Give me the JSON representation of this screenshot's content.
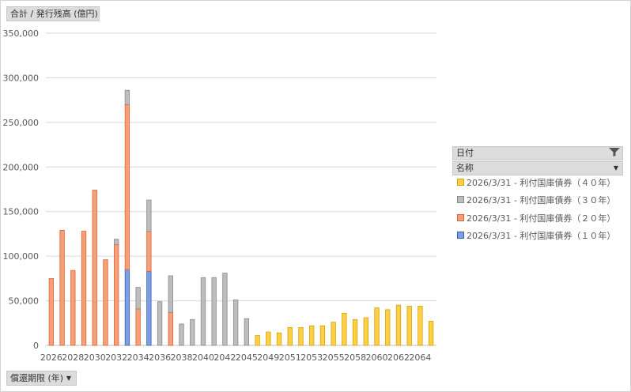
{
  "value_field": "合計 / 発行残高 (億円)",
  "axis_field": "償還期限 (年)",
  "legend": {
    "header_date": "日付",
    "header_name": "名称",
    "items": [
      {
        "label": "2026/3/31 - 利付国庫債券（４０年）",
        "color": "#ffd047",
        "border": "#d4a400"
      },
      {
        "label": "2026/3/31 - 利付国庫債券（３０年）",
        "color": "#bdbdbd",
        "border": "#8a8a8a"
      },
      {
        "label": "2026/3/31 - 利付国庫債券（２０年）",
        "color": "#f4a07a",
        "border": "#e0622e"
      },
      {
        "label": "2026/3/31 - 利付国庫債券（１０年）",
        "color": "#7d9ee0",
        "border": "#3b5fb5"
      }
    ]
  },
  "chart_data": {
    "type": "bar",
    "stacked": true,
    "ylim": [
      0,
      350000
    ],
    "yticks": [
      "0",
      "50,000",
      "100,000",
      "150,000",
      "200,000",
      "250,000",
      "300,000",
      "350,000"
    ],
    "grid": true,
    "categories": [
      "2026",
      "2027",
      "2028",
      "2029",
      "2030",
      "2031",
      "2032",
      "2033",
      "2034",
      "2035",
      "2036",
      "2037",
      "2038",
      "2039",
      "2040",
      "2041",
      "2042",
      "2043",
      "2045",
      "2046",
      "2049",
      "2050",
      "2051",
      "2052",
      "2053",
      "2054",
      "2055",
      "2056",
      "2058",
      "2059",
      "2060",
      "2061",
      "2062",
      "2063",
      "2064",
      "2065"
    ],
    "xtick_labels": [
      "2026",
      "2028",
      "2030",
      "2032",
      "2034",
      "2036",
      "2038",
      "2040",
      "2042",
      "2045",
      "2049",
      "2051",
      "2053",
      "2055",
      "2058",
      "2060",
      "2062",
      "2064"
    ],
    "series": [
      {
        "name": "2026/3/31 - 利付国庫債券（１０年）",
        "color": "#7d9ee0",
        "border": "#3b5fb5",
        "values": [
          0,
          0,
          0,
          0,
          0,
          0,
          0,
          85000,
          0,
          83000,
          0,
          0,
          0,
          0,
          0,
          0,
          0,
          0,
          0,
          0,
          0,
          0,
          0,
          0,
          0,
          0,
          0,
          0,
          0,
          0,
          0,
          0,
          0,
          0,
          0,
          0
        ]
      },
      {
        "name": "2026/3/31 - 利付国庫債券（２０年）",
        "color": "#f4a07a",
        "border": "#e0622e",
        "values": [
          75000,
          129000,
          84000,
          128000,
          174000,
          96000,
          113000,
          185000,
          41000,
          45000,
          0,
          37000,
          0,
          0,
          0,
          0,
          0,
          0,
          0,
          0,
          0,
          0,
          0,
          0,
          0,
          0,
          0,
          0,
          0,
          0,
          0,
          0,
          0,
          0,
          0,
          0
        ]
      },
      {
        "name": "2026/3/31 - 利付国庫債券（３０年）",
        "color": "#bdbdbd",
        "border": "#8a8a8a",
        "values": [
          0,
          0,
          0,
          0,
          0,
          0,
          6000,
          16000,
          24000,
          35000,
          49000,
          41000,
          24000,
          29000,
          76000,
          76000,
          81000,
          51000,
          30000,
          0,
          0,
          0,
          0,
          0,
          0,
          0,
          0,
          0,
          0,
          0,
          0,
          0,
          0,
          0,
          0,
          0
        ]
      },
      {
        "name": "2026/3/31 - 利付国庫債券（４０年）",
        "color": "#ffd047",
        "border": "#d4a400",
        "values": [
          0,
          0,
          0,
          0,
          0,
          0,
          0,
          0,
          0,
          0,
          0,
          0,
          0,
          0,
          0,
          0,
          0,
          0,
          0,
          11000,
          15000,
          14000,
          20000,
          20000,
          22000,
          22000,
          26000,
          36000,
          29000,
          31000,
          42000,
          40000,
          45000,
          44000,
          44000,
          27000
        ]
      }
    ]
  }
}
